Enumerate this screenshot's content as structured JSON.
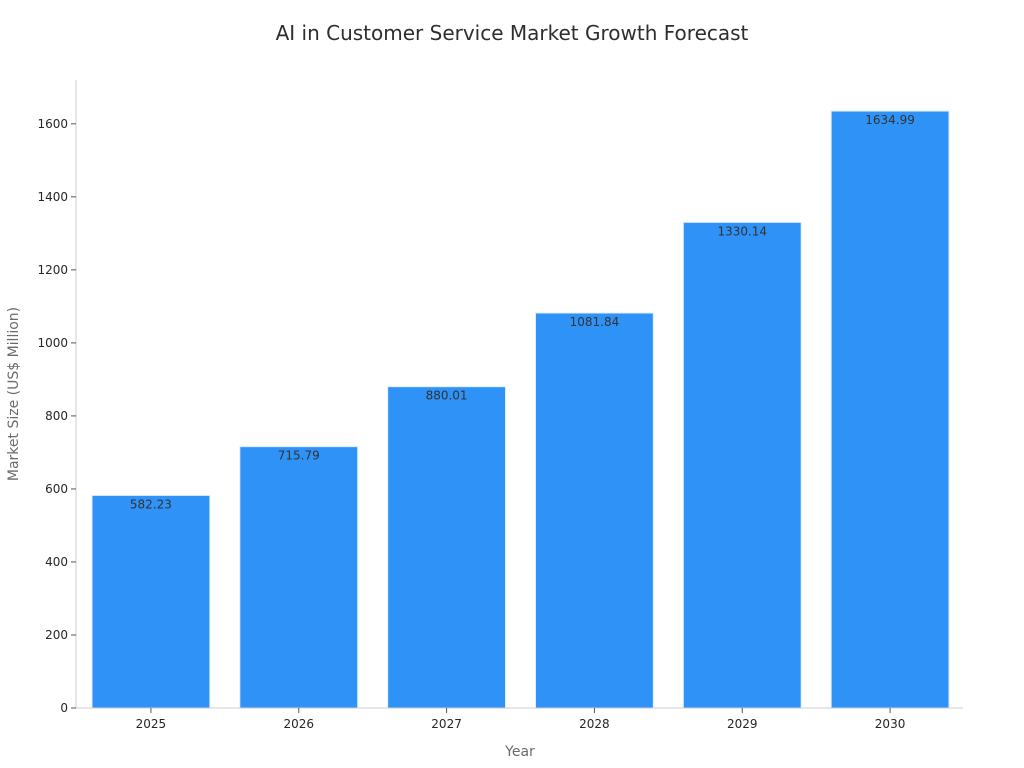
{
  "chart_data": {
    "type": "bar",
    "title": "AI in Customer Service Market Growth Forecast",
    "xlabel": "Year",
    "ylabel": "Market Size (US$ Million)",
    "categories": [
      "2025",
      "2026",
      "2027",
      "2028",
      "2029",
      "2030"
    ],
    "values": [
      582.23,
      715.79,
      880.01,
      1081.84,
      1330.14,
      1634.99
    ],
    "data_labels": [
      "582.23",
      "715.79",
      "880.01",
      "1081.84",
      "1330.14",
      "1634.99"
    ],
    "ylim": [
      0,
      1720
    ],
    "yticks": [
      0,
      200,
      400,
      600,
      800,
      1000,
      1200,
      1400,
      1600
    ],
    "grid": false,
    "legend": "none",
    "colors": {
      "bar": "#2f92f7",
      "bar_edge": "#dcefff",
      "axis": "#cccccc",
      "text": "#262626",
      "label": "#6b6b6b"
    }
  }
}
